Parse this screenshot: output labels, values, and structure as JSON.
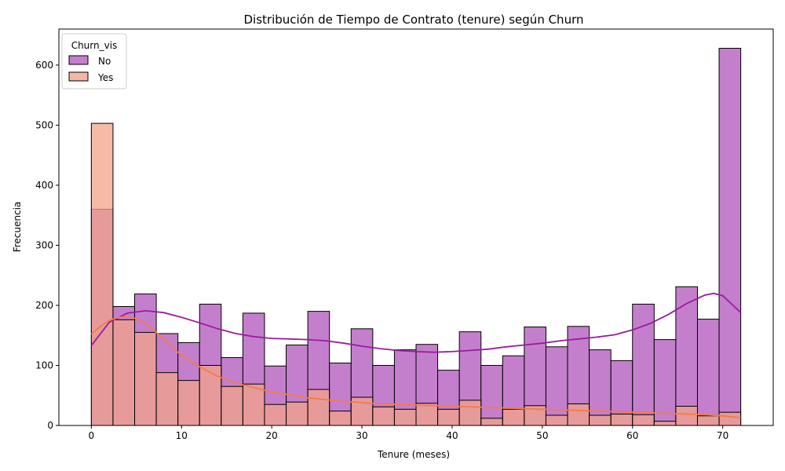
{
  "chart_data": {
    "type": "bar",
    "title": "Distribución de Tiempo de Contrato (tenure) según Churn",
    "xlabel": "Tenure (meses)",
    "ylabel": "Frecuencia",
    "xlim": [
      -3.6,
      75.6
    ],
    "ylim": [
      0,
      660
    ],
    "x_ticks": [
      0,
      10,
      20,
      30,
      40,
      50,
      60,
      70
    ],
    "y_ticks": [
      0,
      100,
      200,
      300,
      400,
      500,
      600
    ],
    "bin_edges": [
      0,
      2.4,
      4.8,
      7.2,
      9.6,
      12,
      14.4,
      16.8,
      19.2,
      21.6,
      24,
      26.4,
      28.8,
      31.2,
      33.6,
      36,
      38.4,
      40.8,
      43.2,
      45.6,
      48,
      50.4,
      52.8,
      55.2,
      57.6,
      60,
      62.4,
      64.8,
      67.2,
      69.6,
      72
    ],
    "legend": {
      "title": "Churn_vis",
      "position": "top-left",
      "entries": [
        "No",
        "Yes"
      ]
    },
    "series": [
      {
        "name": "No",
        "color": "#c47fcc",
        "line_color": "#9a1c9e",
        "values": [
          360,
          198,
          219,
          153,
          138,
          202,
          113,
          187,
          99,
          134,
          190,
          104,
          161,
          100,
          126,
          135,
          92,
          156,
          100,
          116,
          164,
          131,
          165,
          126,
          108,
          202,
          143,
          231,
          177,
          628
        ],
        "kde_x": [
          0,
          2,
          4,
          6,
          8,
          10,
          12,
          14,
          16,
          18,
          20,
          22,
          24,
          26,
          28,
          30,
          32,
          34,
          36,
          38,
          40,
          42,
          44,
          46,
          48,
          50,
          52,
          54,
          56,
          58,
          60,
          62,
          64,
          66,
          68,
          69,
          70,
          72
        ],
        "kde_y": [
          133,
          172,
          187,
          191,
          188,
          180,
          171,
          161,
          153,
          148,
          145,
          144,
          143,
          141,
          137,
          132,
          128,
          125,
          123,
          122,
          123,
          125,
          127,
          131,
          134,
          137,
          141,
          144,
          147,
          151,
          159,
          170,
          185,
          203,
          217,
          220,
          216,
          188
        ]
      },
      {
        "name": "Yes",
        "color": "#f3a389",
        "line_color": "#f07c4a",
        "values": [
          503,
          176,
          155,
          88,
          75,
          100,
          65,
          69,
          35,
          39,
          60,
          24,
          47,
          31,
          27,
          37,
          27,
          42,
          12,
          27,
          33,
          17,
          36,
          17,
          19,
          18,
          7,
          32,
          16,
          22
        ],
        "kde_x": [
          0,
          1,
          2,
          3,
          4,
          5,
          6,
          8,
          10,
          12,
          14,
          16,
          18,
          20,
          22,
          24,
          26,
          28,
          30,
          32,
          34,
          36,
          38,
          40,
          42,
          44,
          46,
          48,
          50,
          52,
          54,
          56,
          58,
          60,
          62,
          64,
          66,
          68,
          70,
          72
        ],
        "kde_y": [
          152,
          165,
          175,
          180,
          181,
          178,
          170,
          145,
          116,
          98,
          82,
          71,
          63,
          56,
          51,
          46,
          43,
          40,
          38,
          36,
          35,
          34,
          33,
          32,
          31,
          30,
          29,
          28,
          27,
          26,
          25,
          24,
          23,
          22,
          21,
          20,
          19,
          18,
          16,
          13
        ]
      }
    ]
  }
}
